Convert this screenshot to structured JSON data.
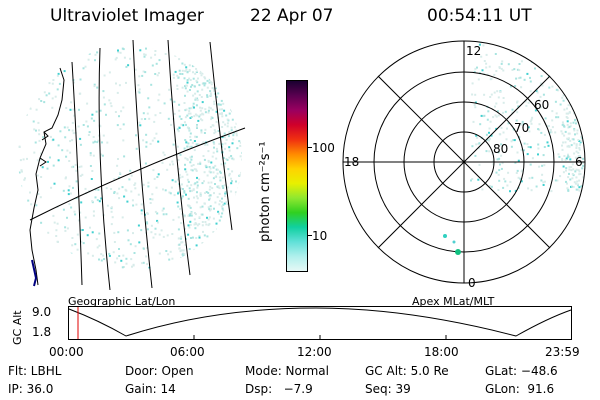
{
  "header": {
    "title": "Ultraviolet Imager",
    "date": "22 Apr 07",
    "time": "00:54:11 UT"
  },
  "colorbar": {
    "unit_label": "photon cm⁻²s⁻¹",
    "ticks": [
      "100",
      "10"
    ],
    "colors": [
      "#1a0030",
      "#5a0050",
      "#9a0060",
      "#d0002a",
      "#f03010",
      "#ff8a00",
      "#ffd200",
      "#e8f000",
      "#90e830",
      "#30d020",
      "#10d0a0",
      "#60e0d8",
      "#b0f0ec",
      "#e6f8f6"
    ]
  },
  "polar": {
    "lat_labels": [
      "60",
      "70",
      "80"
    ],
    "mlt_labels": {
      "top": "12",
      "bottom": "0",
      "left": "18",
      "right": "6"
    }
  },
  "panel_labels": {
    "left": "Geographic Lat/Lon",
    "right": "Apex  MLat/MLT"
  },
  "altitude_plot": {
    "ylabel": "GC Alt",
    "yticks": [
      "9.0",
      "1.8"
    ],
    "xticks": [
      "00:00",
      "06:00",
      "12:00",
      "18:00",
      "23:59"
    ],
    "marker_color": "#e00000"
  },
  "info": {
    "row1": [
      "Flt: LBHL",
      "Door: Open",
      "Mode: Normal",
      "GC Alt: 5.0 Re",
      "GLat: −48.6"
    ],
    "row2": [
      "IP: 36.0",
      "Gain: 14",
      "Dsp:   −7.9",
      "Seq: 39",
      "GLon:  91.6"
    ]
  }
}
